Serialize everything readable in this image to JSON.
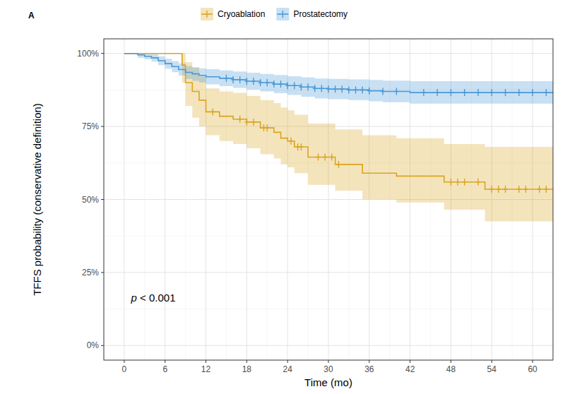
{
  "chart_data": {
    "type": "line",
    "panel_label": "A",
    "x_label": "Time (mo)",
    "y_label": "TFFS probability (conservative definition)",
    "annotation": "p < 0.001",
    "xlim": [
      -3,
      63
    ],
    "xticks": [
      0,
      6,
      12,
      18,
      24,
      30,
      36,
      42,
      48,
      54,
      60
    ],
    "ylim": [
      -5,
      105
    ],
    "yticks": [
      {
        "value": 0,
        "label": "0%"
      },
      {
        "value": 25,
        "label": "25%"
      },
      {
        "value": 50,
        "label": "50%"
      },
      {
        "value": 75,
        "label": "75%"
      },
      {
        "value": 100,
        "label": "100%"
      }
    ],
    "grid": true,
    "legend": "top",
    "line_style": "step",
    "marker": "plus",
    "series": [
      {
        "name": "Cryoablation",
        "color": "#d9a520",
        "x": [
          0,
          8.5,
          9,
          10,
          11,
          12,
          14,
          16,
          18,
          20,
          22,
          23,
          24,
          25,
          27,
          31,
          35,
          40,
          47,
          53,
          63
        ],
        "values": [
          100,
          96,
          90,
          87,
          84,
          80,
          78.5,
          77.5,
          76.5,
          74.5,
          73,
          71,
          70,
          68,
          64.5,
          62,
          59,
          58,
          56,
          53.5,
          53.5
        ],
        "lower": [
          100,
          90,
          82,
          78,
          75,
          72,
          70,
          69,
          67.5,
          65.5,
          64,
          62,
          61,
          59,
          55,
          53,
          50,
          49,
          46.5,
          42.5,
          42.5
        ],
        "upper": [
          100,
          100,
          97,
          95,
          92,
          88,
          87,
          86.5,
          85.5,
          84,
          83,
          81.5,
          80.5,
          79,
          76,
          74,
          72,
          71,
          69,
          68,
          68
        ],
        "censor_x": [
          13,
          17,
          18,
          19,
          20.5,
          21,
          24.5,
          25.5,
          26,
          28.5,
          29.5,
          30.5,
          31.5,
          48,
          49,
          50,
          52,
          54,
          55,
          56,
          58,
          59,
          61,
          62
        ],
        "censor_values": [
          80,
          77.5,
          76.5,
          76.5,
          74.5,
          74.5,
          70,
          68,
          68,
          64.5,
          64.5,
          64.5,
          62,
          56,
          56,
          56,
          56,
          53.5,
          53.5,
          53.5,
          53.5,
          53.5,
          53.5,
          53.5
        ]
      },
      {
        "name": "Prostatectomy",
        "color": "#4a98d6",
        "x": [
          0,
          2,
          3,
          4,
          5,
          6,
          7,
          8,
          9,
          10,
          11,
          12,
          14,
          16,
          18,
          20,
          22,
          24,
          26,
          28,
          30,
          33,
          36,
          38,
          42,
          63
        ],
        "values": [
          100,
          99.5,
          99,
          98.5,
          97.5,
          96.5,
          95.5,
          94.5,
          93.5,
          93,
          92.5,
          92,
          91.5,
          91,
          90.5,
          90,
          89.5,
          89,
          88.5,
          88,
          87.8,
          87.5,
          87.2,
          87,
          86.6,
          86.6
        ],
        "lower": [
          100,
          98.5,
          98,
          97.2,
          96,
          94.8,
          93.6,
          92.4,
          91.3,
          90.6,
          90,
          89.4,
          88.8,
          88.2,
          87.6,
          87,
          86.4,
          85.8,
          85.2,
          84.6,
          84.3,
          84,
          83.6,
          83.3,
          82.8,
          82.8
        ],
        "upper": [
          100,
          100,
          100,
          99.8,
          99,
          98.2,
          97.4,
          96.6,
          95.7,
          95.3,
          94.9,
          94.6,
          94.2,
          93.8,
          93.4,
          93,
          92.6,
          92.2,
          91.8,
          91.4,
          91.3,
          91.1,
          90.9,
          90.7,
          90.5,
          90.5
        ],
        "censor_x": [
          15,
          16,
          17,
          18,
          19,
          20,
          21,
          22,
          23,
          24,
          25,
          26,
          27,
          28,
          29,
          30,
          31,
          32,
          33,
          34,
          35,
          36,
          38,
          40,
          44,
          46,
          48,
          50,
          52,
          54,
          56,
          58,
          60,
          62
        ],
        "censor_values": [
          91.5,
          91,
          91,
          90.5,
          90.5,
          90,
          90,
          89.5,
          89.5,
          89,
          89,
          88.5,
          88.5,
          88,
          88,
          87.8,
          87.8,
          87.8,
          87.5,
          87.5,
          87.5,
          87.2,
          87,
          87,
          86.6,
          86.6,
          86.6,
          86.6,
          86.6,
          86.6,
          86.6,
          86.6,
          86.6,
          86.6
        ]
      }
    ]
  }
}
